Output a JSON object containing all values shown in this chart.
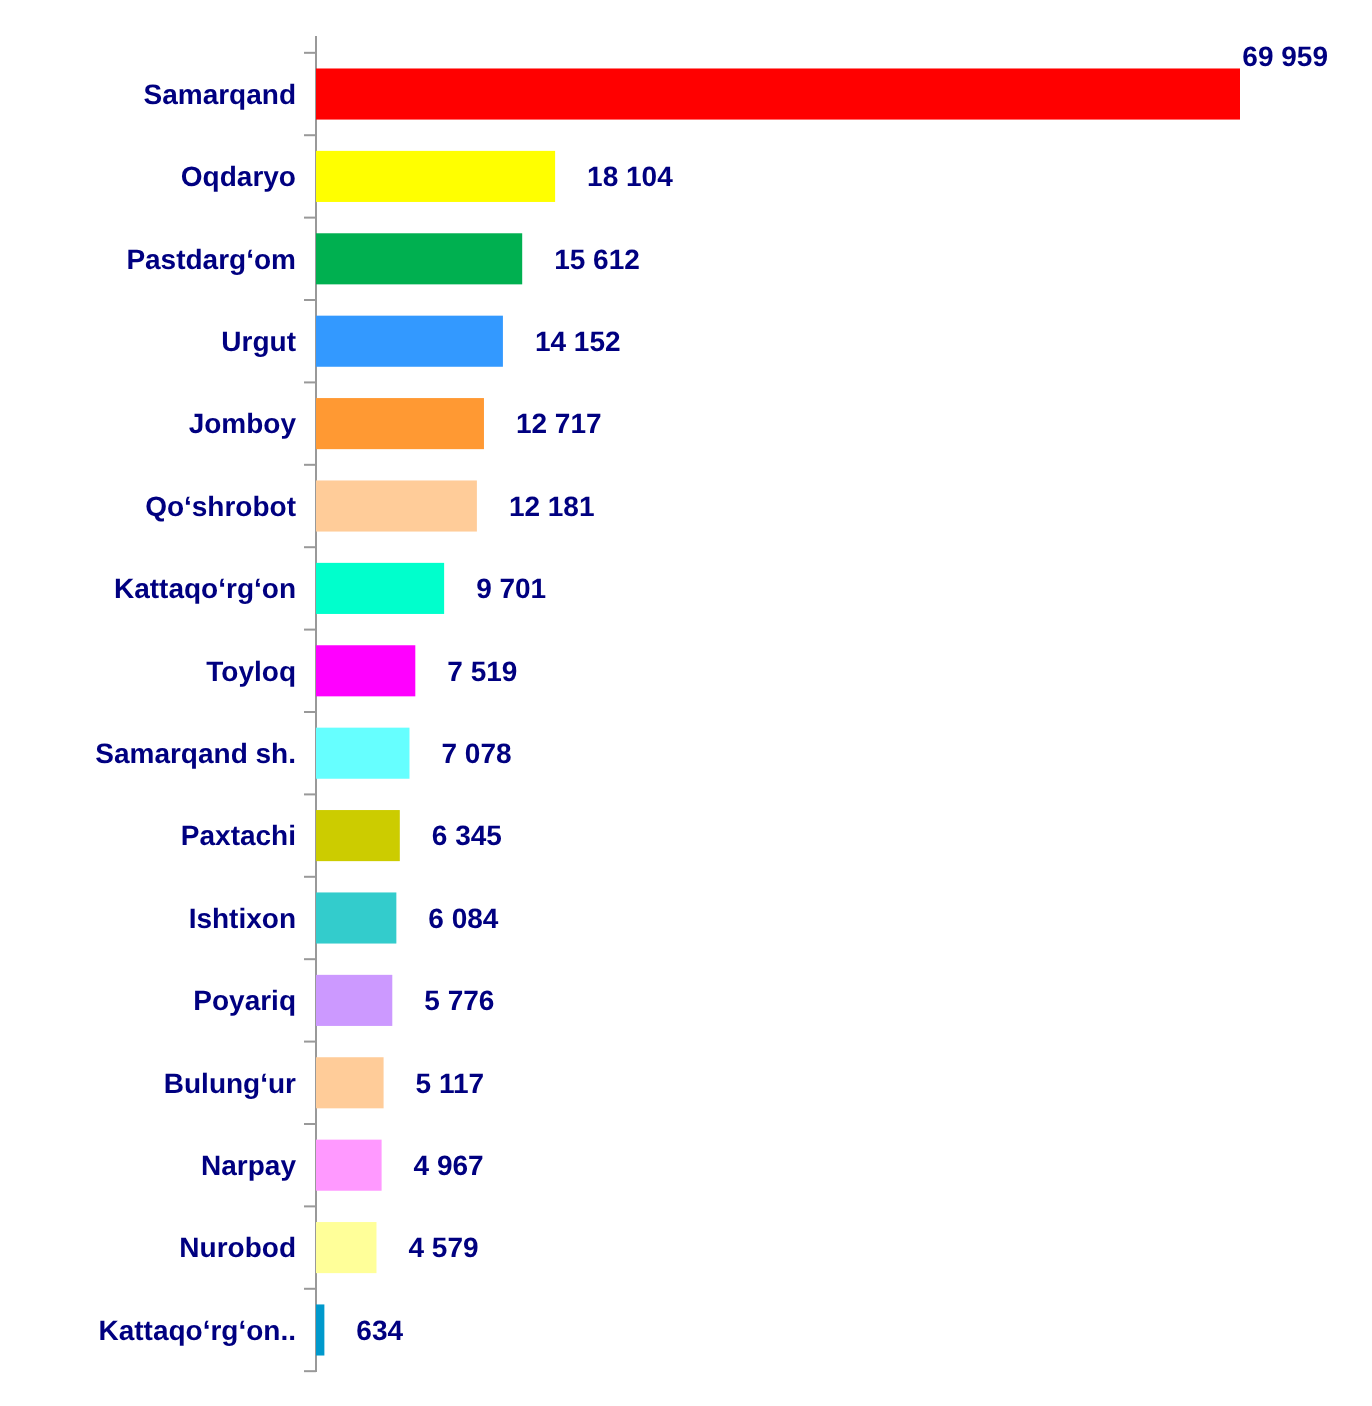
{
  "chart_data": {
    "type": "bar",
    "orientation": "horizontal",
    "data_labels": true,
    "categories": [
      "Samarqand",
      "Oqdaryo",
      "Pastdarg‘om",
      "Urgut",
      "Jomboy",
      "Qo‘shrobot",
      "Kattaqo‘rg‘on",
      "Toyloq",
      "Samarqand sh.",
      "Paxtachi",
      "Ishtixon",
      "Poyariq",
      "Bulung‘ur",
      "Narpay",
      "Nurobod",
      "Kattaqo‘rg‘on.."
    ],
    "values": [
      69959,
      18104,
      15612,
      14152,
      12717,
      12181,
      9701,
      7519,
      7078,
      6345,
      6084,
      5776,
      5117,
      4967,
      4579,
      634
    ],
    "value_labels": [
      "69 959",
      "18 104",
      "15 612",
      "14 152",
      "12 717",
      "12 181",
      "9 701",
      "7 519",
      "7 078",
      "6 345",
      "6 084",
      "5 776",
      "5 117",
      "4 967",
      "4 579",
      "634"
    ],
    "colors": [
      "#ff0000",
      "#ffff00",
      "#00b050",
      "#3399ff",
      "#ff9933",
      "#ffcc99",
      "#00ffcc",
      "#ff00ff",
      "#66ffff",
      "#cccc00",
      "#33cccc",
      "#cc99ff",
      "#ffcc99",
      "#ff99ff",
      "#ffff99",
      "#0099cc"
    ]
  }
}
